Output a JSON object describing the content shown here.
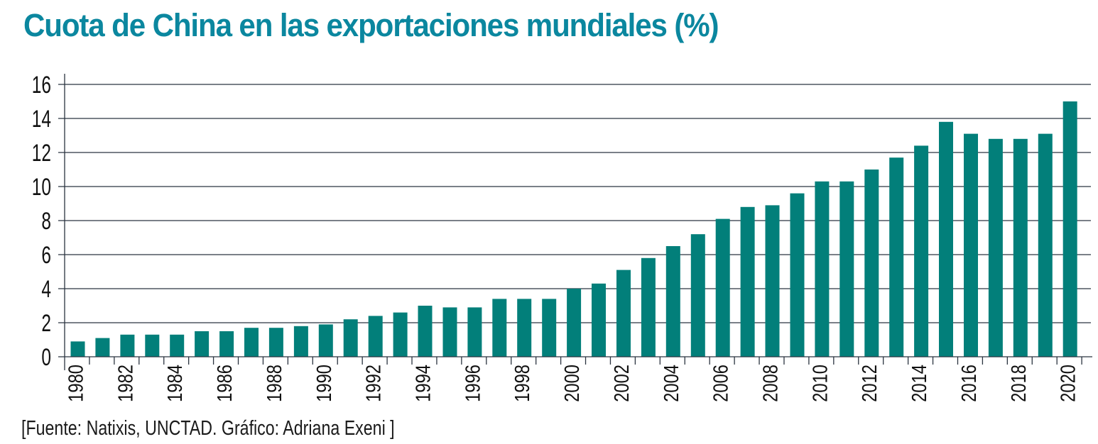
{
  "colors": {
    "title": "#0b879f",
    "bar": "#027f7a",
    "grid": "#2b3440",
    "text": "#111111"
  },
  "chart_data": {
    "type": "bar",
    "title": "Cuota de China en las exportaciones mundiales (%)",
    "xlabel": "",
    "ylabel": "",
    "ylim": [
      0,
      16
    ],
    "yticks": [
      0,
      2,
      4,
      6,
      8,
      10,
      12,
      14,
      16
    ],
    "grid": true,
    "legend": "none",
    "categories": [
      "1980",
      "1981",
      "1982",
      "1983",
      "1984",
      "1985",
      "1986",
      "1987",
      "1988",
      "1989",
      "1990",
      "1991",
      "1992",
      "1993",
      "1994",
      "1995",
      "1996",
      "1997",
      "1998",
      "1999",
      "2000",
      "2001",
      "2002",
      "2003",
      "2004",
      "2005",
      "2006",
      "2007",
      "2008",
      "2009",
      "2010",
      "2011",
      "2012",
      "2013",
      "2014",
      "2015",
      "2016",
      "2017",
      "2018",
      "2019",
      "2020"
    ],
    "xtick_labels": [
      "1980",
      "1982",
      "1984",
      "1986",
      "1988",
      "1990",
      "1992",
      "1994",
      "1996",
      "1998",
      "2000",
      "2002",
      "2004",
      "2006",
      "2008",
      "2010",
      "2012",
      "2014",
      "2016",
      "2018",
      "2020"
    ],
    "series": [
      {
        "name": "Cuota de China (%)",
        "values": [
          0.9,
          1.1,
          1.3,
          1.3,
          1.3,
          1.5,
          1.5,
          1.7,
          1.7,
          1.8,
          1.9,
          2.2,
          2.4,
          2.6,
          3.0,
          2.9,
          2.9,
          3.4,
          3.4,
          3.4,
          4.0,
          4.3,
          5.1,
          5.8,
          6.5,
          7.2,
          8.1,
          8.8,
          8.9,
          9.6,
          10.3,
          10.3,
          11.0,
          11.7,
          12.4,
          13.8,
          13.1,
          12.8,
          12.8,
          13.1,
          15.0
        ]
      }
    ],
    "source": "[Fuente: Natixis, UNCTAD. Gráfico: Adriana Exeni ]"
  }
}
